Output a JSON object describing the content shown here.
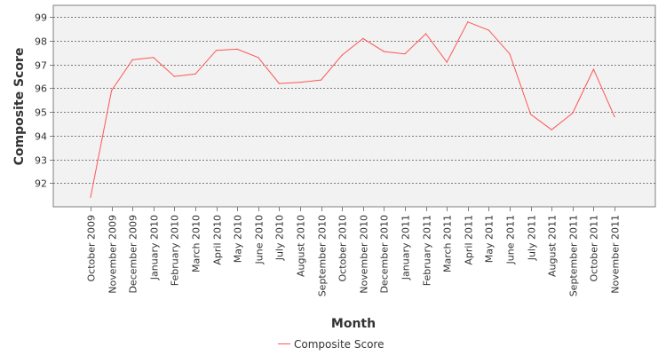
{
  "chart_data": {
    "type": "line",
    "title": "",
    "xlabel": "Month",
    "ylabel": "Composite Score",
    "categories": [
      "October 2009",
      "November 2009",
      "December 2009",
      "January 2010",
      "February 2010",
      "March 2010",
      "April 2010",
      "May 2010",
      "June 2010",
      "July 2010",
      "August 2010",
      "September 2010",
      "October 2010",
      "November 2010",
      "December 2010",
      "January 2011",
      "February 2011",
      "March 2011",
      "April 2011",
      "May 2011",
      "June 2011",
      "July 2011",
      "August 2011",
      "September 2011",
      "October 2011",
      "November 2011"
    ],
    "series": [
      {
        "name": "Composite Score",
        "color": "#ff5555",
        "values": [
          91.4,
          95.9,
          97.2,
          97.3,
          96.5,
          96.6,
          97.6,
          97.65,
          97.3,
          96.2,
          96.25,
          96.35,
          97.4,
          98.1,
          97.55,
          97.45,
          98.3,
          97.1,
          98.8,
          98.45,
          97.45,
          94.9,
          94.25,
          94.95,
          96.8,
          94.8
        ]
      }
    ],
    "yticks": [
      92,
      93,
      94,
      95,
      96,
      97,
      98,
      99
    ],
    "ylim": [
      91.0,
      99.5
    ],
    "grid": true,
    "legend_position": "bottom"
  }
}
